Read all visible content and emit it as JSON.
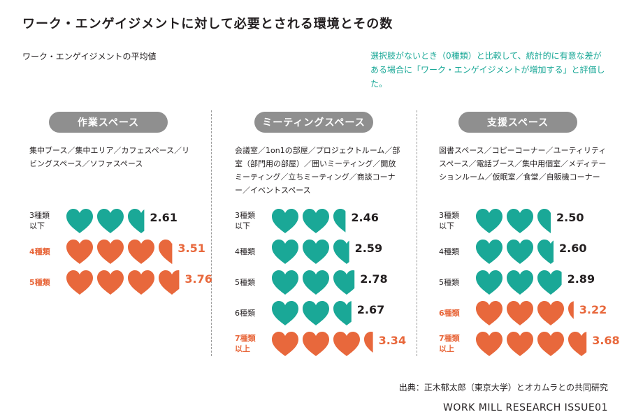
{
  "title": "ワーク・エンゲイジメントに対して必要とされる環境とその数",
  "subtitle": "ワーク・エンゲイジメントの平均値",
  "note": "選択肢がないとき（0種類）と比較して、統計的に有意な差がある場合に「ワーク・エンゲイジメントが増加する」と評価した。",
  "source": "出典：正木郁太郎（東京大学）とオカムラとの共同研究",
  "brand": "WORK MILL RESEARCH ISSUE01",
  "colors": {
    "normal": "#1aa897",
    "significant": "#e8683c",
    "pill": "#8f8f8f"
  },
  "chart_data": {
    "type": "pictograph",
    "unit": "1 heart = 1.0",
    "panels": [
      {
        "name": "作業スペース",
        "items": "集中ブース／集中エリア／カフェスペース／リビングスペース／ソファスペース",
        "rows": [
          {
            "label": "3種類\n以下",
            "value": 2.61,
            "value_label": "2.61",
            "significant": false
          },
          {
            "label": "4種類",
            "value": 3.51,
            "value_label": "3.51",
            "significant": true
          },
          {
            "label": "5種類",
            "value": 3.76,
            "value_label": "3.76",
            "significant": true
          }
        ]
      },
      {
        "name": "ミーティングスペース",
        "items": "会議室／1on1の部屋／プロジェクトルーム／部室（部門用の部屋）／囲いミーティング／開放ミーティング／立ちミーティング／商談コーナー／イベントスペース",
        "rows": [
          {
            "label": "3種類\n以下",
            "value": 2.46,
            "value_label": "2.46",
            "significant": false
          },
          {
            "label": "4種類",
            "value": 2.59,
            "value_label": "2.59",
            "significant": false
          },
          {
            "label": "5種類",
            "value": 2.78,
            "value_label": "2.78",
            "significant": false
          },
          {
            "label": "6種類",
            "value": 2.67,
            "value_label": "2.67",
            "significant": false
          },
          {
            "label": "7種類\n以上",
            "value": 3.34,
            "value_label": "3.34",
            "significant": true
          }
        ]
      },
      {
        "name": "支援スペース",
        "items": "図書スペース／コピーコーナー／ユーティリティスペース／電話ブース／集中用個室／メディテーションルーム／仮眠室／食堂／自販機コーナー",
        "rows": [
          {
            "label": "3種類\n以下",
            "value": 2.5,
            "value_label": "2.50",
            "significant": false
          },
          {
            "label": "4種類",
            "value": 2.6,
            "value_label": "2.60",
            "significant": false
          },
          {
            "label": "5種類",
            "value": 2.89,
            "value_label": "2.89",
            "significant": false
          },
          {
            "label": "6種類",
            "value": 3.22,
            "value_label": "3.22",
            "significant": true
          },
          {
            "label": "7種類\n以上",
            "value": 3.68,
            "value_label": "3.68",
            "significant": true
          }
        ]
      }
    ]
  }
}
